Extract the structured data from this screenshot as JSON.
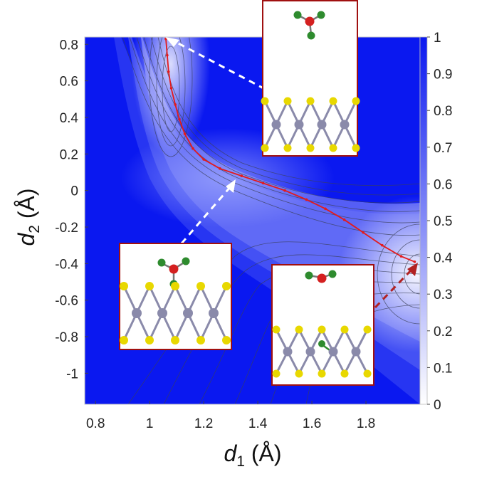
{
  "chart_data": {
    "type": "heatmap",
    "title": "",
    "xlabel": {
      "symbol": "d",
      "subscript": "1",
      "unit": " (Å)"
    },
    "ylabel": {
      "symbol": "d",
      "subscript": "2",
      "unit": " (Å)"
    },
    "xlim": [
      0.76,
      2.0
    ],
    "ylim": [
      -1.17,
      0.84
    ],
    "x_ticks": [
      "0.8",
      "1",
      "1.2",
      "1.4",
      "1.6",
      "1.8"
    ],
    "x_tick_values": [
      0.8,
      1.0,
      1.2,
      1.4,
      1.6,
      1.8
    ],
    "y_ticks": [
      "0.8",
      "0.6",
      "0.4",
      "0.2",
      "0",
      "-0.2",
      "-0.4",
      "-0.6",
      "-0.8",
      "-1"
    ],
    "y_tick_values": [
      0.8,
      0.6,
      0.4,
      0.2,
      0.0,
      -0.2,
      -0.4,
      -0.6,
      -0.8,
      -1.0
    ],
    "colorbar": {
      "range": [
        0,
        1
      ],
      "ticks": [
        "1",
        "0.9",
        "0.8",
        "0.7",
        "0.6",
        "0.5",
        "0.4",
        "0.3",
        "0.2",
        "0.1",
        "0"
      ],
      "tick_values": [
        1,
        0.9,
        0.8,
        0.7,
        0.6,
        0.5,
        0.4,
        0.3,
        0.2,
        0.1,
        0
      ],
      "low_color": "#ffffff",
      "high_color": "#0a18f0"
    },
    "contour_levels": 20,
    "grid": false,
    "reaction_path": {
      "color": "#e31a1c",
      "x": [
        1.06,
        1.065,
        1.07,
        1.08,
        1.095,
        1.11,
        1.13,
        1.16,
        1.2,
        1.26,
        1.34,
        1.42,
        1.5,
        1.58,
        1.65,
        1.72,
        1.79,
        1.86,
        1.93,
        1.98
      ],
      "y": [
        0.83,
        0.74,
        0.65,
        0.56,
        0.47,
        0.39,
        0.31,
        0.23,
        0.17,
        0.12,
        0.08,
        0.04,
        0.0,
        -0.05,
        -0.1,
        -0.16,
        -0.23,
        -0.3,
        -0.36,
        -0.39
      ]
    },
    "annotations": [
      {
        "name": "inset-top",
        "description": "adsorbate on MoS2 slab, pointing to top path end",
        "arrow_color": "#ffffff",
        "target": [
          1.06,
          0.83
        ]
      },
      {
        "name": "inset-middle",
        "description": "adsorbate above MoS2 slab, pointing to saddle region",
        "arrow_color": "#ffffff",
        "target": [
          1.3,
          0.05
        ]
      },
      {
        "name": "inset-right",
        "description": "dissociated adsorbate on MoS2 slab, pointing to bottom-right path end",
        "arrow_color": "#b22222",
        "target": [
          1.98,
          -0.39
        ]
      }
    ]
  },
  "colors": {
    "high": "#0a18f0",
    "low": "#ffffff",
    "path": "#e31a1c",
    "inset_border": "#a01010",
    "slab_metal": "#8a8aaa",
    "slab_sulfur": "#e8d800",
    "atom_oxygen": "#d42020",
    "atom_chlorine": "#2e8b2e"
  }
}
